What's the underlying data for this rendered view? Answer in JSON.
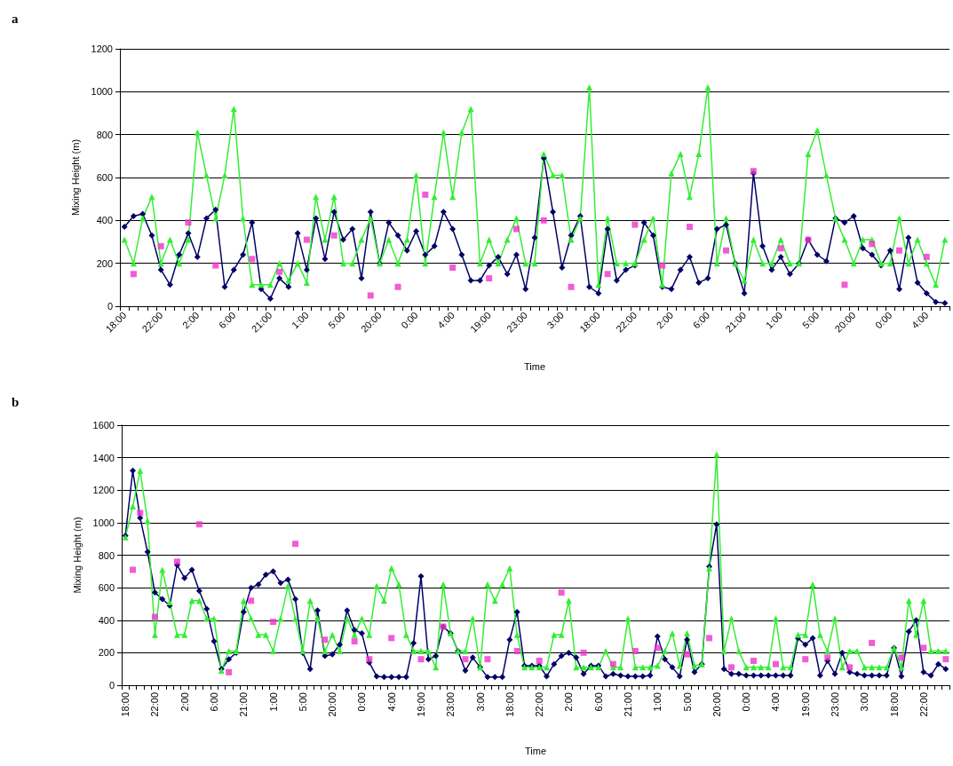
{
  "chart_data": [
    {
      "type": "line",
      "title": "a",
      "xlabel": "Time",
      "ylabel": "Mixing Height (m)",
      "categories": [
        "18:00",
        null,
        null,
        null,
        "22:00",
        null,
        null,
        null,
        "2:00",
        null,
        null,
        null,
        "6:00",
        null,
        null,
        null,
        "21:00",
        null,
        null,
        null,
        "1:00",
        null,
        null,
        null,
        "5:00",
        null,
        null,
        null,
        "20:00",
        null,
        null,
        null,
        "0:00",
        null,
        null,
        null,
        "4:00",
        null,
        null,
        null,
        "19:00",
        null,
        null,
        null,
        "23:00",
        null,
        null,
        null,
        "3:00",
        null,
        null,
        null,
        "18:00",
        null,
        null,
        null,
        "22:00",
        null,
        null,
        null,
        "2:00",
        null,
        null,
        null,
        "6:00",
        null,
        null,
        null,
        "21:00",
        null,
        null,
        null,
        "1:00",
        null,
        null,
        null,
        "5:00",
        null,
        null,
        null,
        "20:00",
        null,
        null,
        null,
        "0:00",
        null,
        null,
        null,
        "4:00",
        null,
        null
      ],
      "series": [
        {
          "type": "line",
          "color": "#000066",
          "marker": "diamond",
          "values": [
            370,
            420,
            430,
            330,
            170,
            100,
            240,
            340,
            230,
            410,
            450,
            90,
            170,
            240,
            390,
            80,
            35,
            130,
            90,
            340,
            170,
            410,
            220,
            440,
            310,
            360,
            130,
            440,
            200,
            390,
            330,
            260,
            350,
            240,
            280,
            440,
            360,
            240,
            120,
            120,
            190,
            230,
            150,
            240,
            80,
            320,
            690,
            440,
            180,
            330,
            420,
            90,
            60,
            360,
            120,
            170,
            190,
            390,
            330,
            90,
            80,
            170,
            230,
            110,
            130,
            360,
            380,
            200,
            60,
            620,
            280,
            170,
            230,
            150,
            200,
            310,
            240,
            210,
            410,
            390,
            420,
            270,
            240,
            190,
            260,
            80,
            320,
            110,
            60,
            20,
            15
          ]
        },
        {
          "type": "line",
          "color": "#33ee33",
          "marker": "triangle",
          "values": [
            310,
            200,
            410,
            510,
            200,
            310,
            200,
            310,
            810,
            610,
            410,
            610,
            920,
            410,
            100,
            100,
            100,
            200,
            120,
            200,
            110,
            510,
            310,
            510,
            200,
            200,
            310,
            410,
            200,
            310,
            200,
            310,
            610,
            200,
            510,
            810,
            510,
            810,
            920,
            200,
            310,
            200,
            310,
            410,
            200,
            200,
            710,
            610,
            610,
            310,
            410,
            1020,
            100,
            410,
            200,
            200,
            200,
            310,
            410,
            100,
            620,
            710,
            510,
            710,
            1020,
            200,
            410,
            200,
            120,
            310,
            200,
            200,
            310,
            200,
            200,
            710,
            820,
            610,
            410,
            310,
            200,
            310,
            310,
            200,
            200,
            410,
            200,
            310,
            200,
            100,
            310
          ]
        },
        {
          "type": "scatter",
          "color": "#ee33cc",
          "marker": "square",
          "values": [
            null,
            150,
            null,
            null,
            280,
            null,
            null,
            390,
            null,
            null,
            190,
            null,
            null,
            null,
            220,
            null,
            null,
            160,
            null,
            null,
            310,
            null,
            null,
            330,
            null,
            null,
            null,
            50,
            null,
            null,
            90,
            null,
            null,
            520,
            null,
            null,
            180,
            null,
            null,
            null,
            130,
            null,
            null,
            360,
            null,
            null,
            400,
            null,
            null,
            90,
            null,
            null,
            null,
            150,
            null,
            null,
            380,
            null,
            null,
            190,
            null,
            null,
            370,
            null,
            null,
            null,
            260,
            null,
            null,
            630,
            null,
            null,
            270,
            null,
            null,
            310,
            null,
            null,
            null,
            100,
            null,
            null,
            290,
            null,
            null,
            260,
            null,
            null,
            230,
            null,
            null
          ]
        }
      ],
      "ylim": [
        0,
        1200
      ],
      "yticks": [
        0,
        200,
        400,
        600,
        800,
        1000,
        1200
      ],
      "grid": "y"
    },
    {
      "type": "line",
      "title": "b",
      "xlabel": "Time",
      "ylabel": "Mixing Height (m)",
      "categories": [
        "18:00",
        null,
        null,
        null,
        "22:00",
        null,
        null,
        null,
        "2:00",
        null,
        null,
        null,
        "6:00",
        null,
        null,
        null,
        "21:00",
        null,
        null,
        null,
        "1:00",
        null,
        null,
        null,
        "5:00",
        null,
        null,
        null,
        "20:00",
        null,
        null,
        null,
        "0:00",
        null,
        null,
        null,
        "4:00",
        null,
        null,
        null,
        "19:00",
        null,
        null,
        null,
        "23:00",
        null,
        null,
        null,
        "3:00",
        null,
        null,
        null,
        "18:00",
        null,
        null,
        null,
        "22:00",
        null,
        null,
        null,
        "2:00",
        null,
        null,
        null,
        "6:00",
        null,
        null,
        null,
        "21:00",
        null,
        null,
        null,
        "1:00",
        null,
        null,
        null,
        "5:00",
        null,
        null,
        null,
        "20:00",
        null,
        null,
        null,
        "0:00",
        null,
        null,
        null,
        "4:00",
        null,
        null,
        null,
        "19:00",
        null,
        null,
        null,
        "23:00",
        null,
        null,
        null,
        "3:00",
        null,
        null,
        null,
        "18:00",
        null,
        null,
        null,
        "22:00",
        null,
        null,
        null
      ],
      "series": [
        {
          "type": "line",
          "color": "#000066",
          "marker": "diamond",
          "values": [
            920,
            1320,
            1030,
            820,
            570,
            530,
            490,
            740,
            660,
            710,
            580,
            470,
            270,
            100,
            160,
            200,
            450,
            600,
            620,
            680,
            700,
            630,
            650,
            530,
            200,
            100,
            460,
            180,
            190,
            250,
            460,
            340,
            320,
            140,
            55,
            50,
            50,
            50,
            50,
            260,
            670,
            160,
            180,
            360,
            320,
            210,
            90,
            170,
            110,
            50,
            50,
            50,
            280,
            450,
            120,
            120,
            120,
            55,
            130,
            180,
            200,
            170,
            70,
            120,
            120,
            55,
            70,
            60,
            55,
            55,
            55,
            60,
            300,
            160,
            110,
            55,
            280,
            80,
            130,
            730,
            990,
            100,
            70,
            70,
            60,
            60,
            60,
            60,
            60,
            60,
            60,
            290,
            250,
            290,
            60,
            150,
            70,
            200,
            80,
            70,
            60,
            60,
            60,
            60,
            230,
            55,
            330,
            400,
            80,
            60,
            130,
            100
          ]
        },
        {
          "type": "line",
          "color": "#33ee33",
          "marker": "triangle",
          "values": [
            910,
            1100,
            1320,
            1010,
            310,
            710,
            510,
            310,
            310,
            520,
            520,
            410,
            410,
            90,
            210,
            210,
            520,
            410,
            310,
            310,
            210,
            410,
            610,
            410,
            210,
            520,
            410,
            210,
            310,
            210,
            410,
            310,
            410,
            310,
            610,
            520,
            720,
            620,
            310,
            210,
            210,
            210,
            110,
            620,
            320,
            210,
            210,
            410,
            110,
            620,
            520,
            620,
            720,
            310,
            110,
            110,
            110,
            110,
            310,
            310,
            520,
            110,
            110,
            110,
            110,
            210,
            110,
            110,
            410,
            110,
            110,
            110,
            120,
            210,
            320,
            120,
            320,
            120,
            130,
            720,
            1420,
            210,
            410,
            210,
            110,
            110,
            110,
            110,
            410,
            110,
            110,
            310,
            310,
            620,
            310,
            210,
            410,
            110,
            210,
            210,
            110,
            110,
            110,
            110,
            230,
            110,
            520,
            310,
            520,
            210,
            210,
            210
          ]
        },
        {
          "type": "scatter",
          "color": "#ee33cc",
          "marker": "square",
          "values": [
            null,
            710,
            1060,
            null,
            420,
            null,
            null,
            760,
            null,
            null,
            990,
            null,
            null,
            null,
            80,
            null,
            null,
            520,
            null,
            null,
            390,
            null,
            null,
            870,
            null,
            null,
            null,
            280,
            null,
            null,
            null,
            270,
            null,
            160,
            null,
            null,
            290,
            null,
            null,
            null,
            160,
            null,
            null,
            360,
            null,
            null,
            160,
            null,
            null,
            160,
            null,
            null,
            null,
            210,
            null,
            null,
            150,
            null,
            null,
            570,
            null,
            null,
            200,
            null,
            null,
            null,
            130,
            null,
            null,
            210,
            null,
            null,
            230,
            null,
            null,
            null,
            190,
            null,
            null,
            290,
            null,
            null,
            110,
            null,
            null,
            150,
            null,
            null,
            130,
            null,
            null,
            null,
            160,
            null,
            null,
            170,
            null,
            null,
            110,
            null,
            null,
            260,
            null,
            null,
            null,
            170,
            null,
            null,
            230,
            null,
            null,
            160
          ]
        }
      ],
      "ylim": [
        0,
        1600
      ],
      "yticks": [
        0,
        200,
        400,
        600,
        800,
        1000,
        1200,
        1400,
        1600
      ],
      "grid": "y"
    }
  ]
}
